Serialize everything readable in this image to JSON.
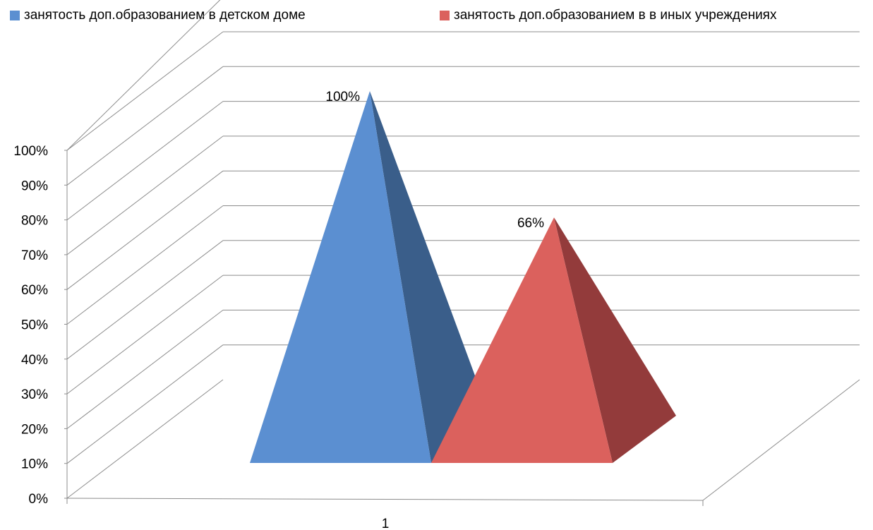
{
  "chart_data": {
    "type": "bar",
    "shape": "3d-pyramid",
    "categories": [
      "1"
    ],
    "series": [
      {
        "name": "занятость доп.образованием в детском доме",
        "values": [
          100
        ],
        "data_label": "100%",
        "color": "#5b8fd1",
        "shade": "#3a5e8a"
      },
      {
        "name": "занятость доп.образованием в в иных учреждениях",
        "values": [
          66
        ],
        "data_label": "66%",
        "color": "#db615d",
        "shade": "#933b3b"
      }
    ],
    "y_ticks": [
      "0%",
      "10%",
      "20%",
      "30%",
      "40%",
      "50%",
      "60%",
      "70%",
      "80%",
      "90%",
      "100%"
    ],
    "ylim": [
      0,
      100
    ],
    "grid": true,
    "legend_position": "top"
  }
}
